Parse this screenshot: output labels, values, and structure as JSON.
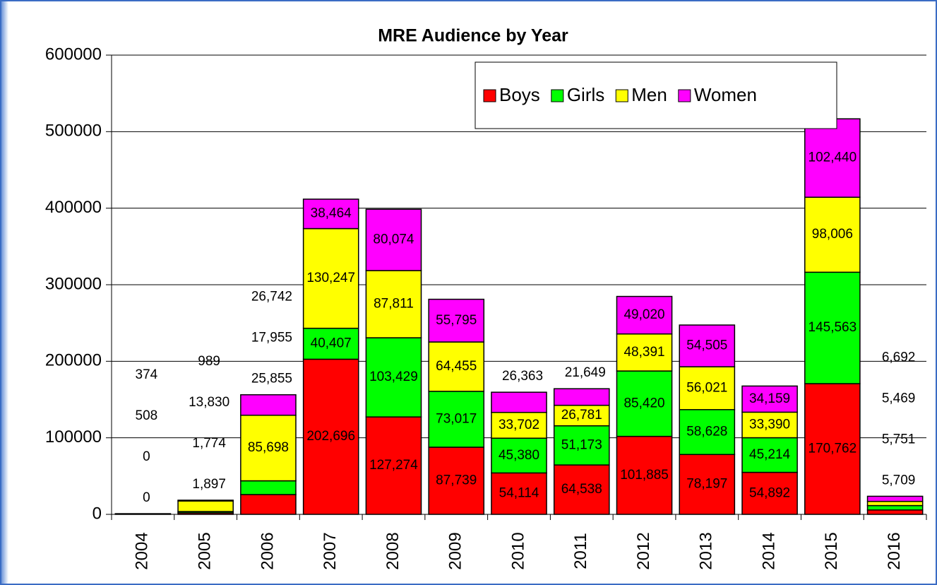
{
  "chart_data": {
    "type": "stacked_bar",
    "title": "MRE Audience by Year",
    "categories": [
      "2004",
      "2005",
      "2006",
      "2007",
      "2008",
      "2009",
      "2010",
      "2011",
      "2012",
      "2013",
      "2014",
      "2015",
      "2016"
    ],
    "series": [
      {
        "name": "Boys",
        "color": "#ff0000",
        "values": [
          0,
          1897,
          25855,
          202696,
          127274,
          87739,
          54114,
          64538,
          101885,
          78197,
          54892,
          170762,
          5709
        ],
        "value_labels": [
          "0",
          "1,897",
          "25,855",
          "202,696",
          "127,274",
          "87,739",
          "54,114",
          "64,538",
          "101,885",
          "78,197",
          "54,892",
          "170,762",
          "5,709"
        ]
      },
      {
        "name": "Girls",
        "color": "#00ff00",
        "values": [
          0,
          1774,
          17955,
          40407,
          103429,
          73017,
          45380,
          51173,
          85420,
          58628,
          45214,
          145563,
          5751
        ],
        "value_labels": [
          "0",
          "1,774",
          "17,955",
          "40,407",
          "103,429",
          "73,017",
          "45,380",
          "51,173",
          "85,420",
          "58,628",
          "45,214",
          "145,563",
          "5,751"
        ]
      },
      {
        "name": "Men",
        "color": "#ffff00",
        "values": [
          508,
          13830,
          85698,
          130247,
          87811,
          64455,
          33702,
          26781,
          48391,
          56021,
          33390,
          98006,
          5469
        ],
        "value_labels": [
          "508",
          "13,830",
          "85,698",
          "130,247",
          "87,811",
          "64,455",
          "33,702",
          "26,781",
          "48,391",
          "56,021",
          "33,390",
          "98,006",
          "5,469"
        ]
      },
      {
        "name": "Women",
        "color": "#ff00ff",
        "values": [
          374,
          989,
          26742,
          38464,
          80074,
          55795,
          26363,
          21649,
          49020,
          54505,
          34159,
          102440,
          6692
        ],
        "value_labels": [
          "374",
          "989",
          "26,742",
          "38,464",
          "80,074",
          "55,795",
          "26,363",
          "21,649",
          "49,020",
          "54,505",
          "34,159",
          "102,440",
          "6,692"
        ]
      }
    ],
    "ylim": [
      0,
      600000
    ],
    "yticks": [
      0,
      100000,
      200000,
      300000,
      400000,
      500000,
      600000
    ],
    "grid": true,
    "legend": "top-right"
  }
}
